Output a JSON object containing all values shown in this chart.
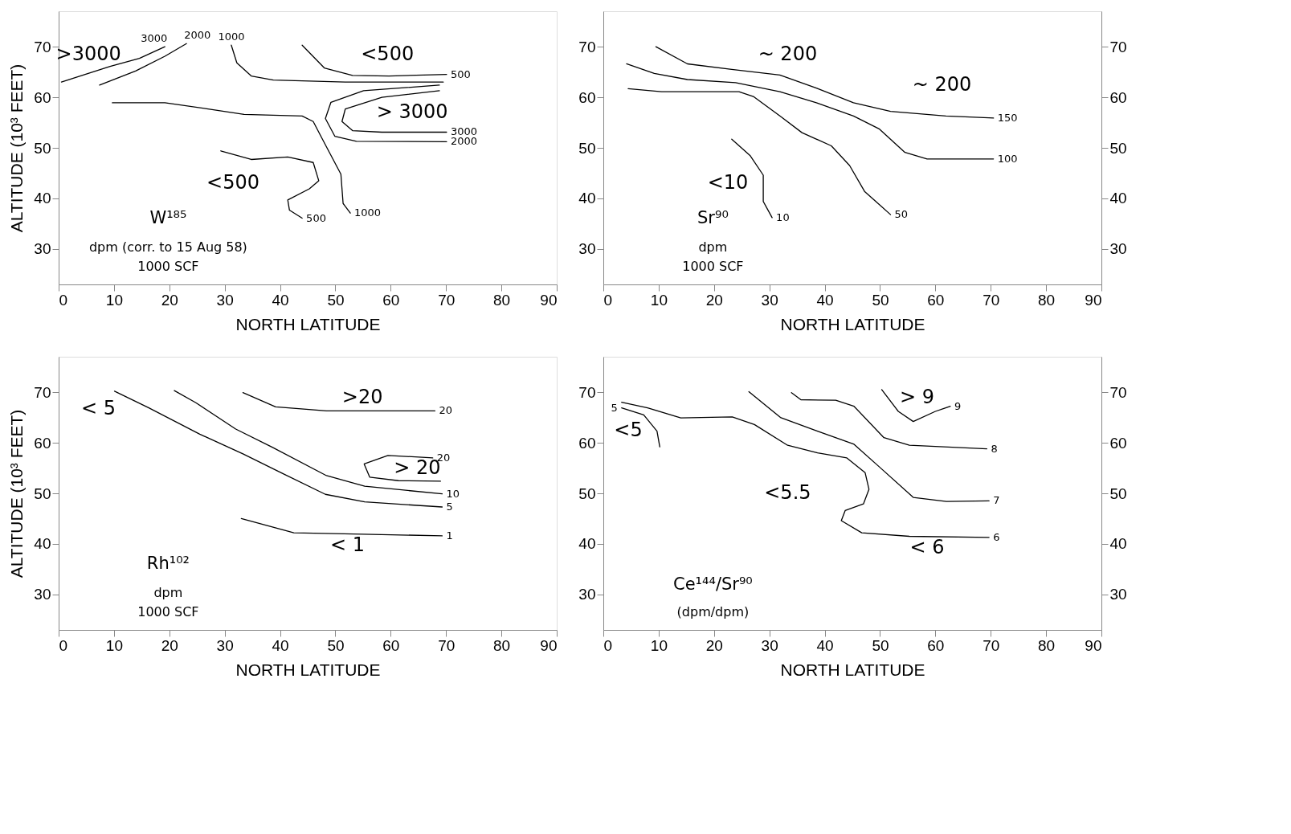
{
  "chart_data": [
    {
      "type": "line",
      "title": "W¹⁸⁵",
      "xlabel": "NORTH LATITUDE",
      "ylabel": "ALTITUDE (10³ FEET)",
      "xlim": [
        0,
        90
      ],
      "ylim": [
        23,
        77
      ],
      "xticks": [
        0,
        10,
        20,
        30,
        40,
        50,
        60,
        70,
        80,
        90
      ],
      "yticks": [
        30,
        40,
        50,
        60,
        70
      ],
      "series": [
        {
          "name": "3000",
          "color": "#000000",
          "x": [
            0.5,
            9.3,
            14.6,
            19.2
          ],
          "values": [
            63,
            66.1,
            67.7,
            70
          ]
        },
        {
          "name": "2000",
          "color": "#000000",
          "x": [
            7.4,
            13.9,
            19.2,
            23.1
          ],
          "values": [
            62.4,
            65.2,
            68.1,
            70.6
          ]
        },
        {
          "name": "1000",
          "color": "#000000",
          "x": [
            69.5,
            51.8,
            38.8,
            34.8,
            32.2,
            31.2
          ],
          "values": [
            63,
            63,
            63.4,
            64.2,
            66.8,
            70.3
          ]
        },
        {
          "name": "500",
          "color": "#000000",
          "x": [
            44,
            48,
            53.1,
            59.7,
            70.1
          ],
          "values": [
            70.3,
            65.8,
            64.3,
            64.2,
            64.5
          ]
        },
        {
          "name": "2000",
          "color": "#000000",
          "x": [
            68.8,
            55.1,
            49.2,
            48.2,
            49.9,
            53.8,
            70.1
          ],
          "values": [
            62.4,
            61.3,
            59,
            55.8,
            52.3,
            51.3,
            51.2
          ]
        },
        {
          "name": "3000",
          "color": "#000000",
          "x": [
            68.8,
            58.4,
            51.8,
            51.2,
            53.1,
            58.4,
            70.1
          ],
          "values": [
            61.3,
            60,
            57.7,
            55.2,
            53.4,
            53.1,
            53.1
          ]
        },
        {
          "name": "1000",
          "color": "#000000",
          "x": [
            9.7,
            19.2,
            27,
            33.5,
            44,
            46,
            48.2,
            51,
            51.4,
            52.7
          ],
          "values": [
            58.9,
            58.9,
            57.7,
            56.6,
            56.3,
            55.2,
            50.6,
            44.8,
            39,
            37.1
          ]
        },
        {
          "name": "500",
          "color": "#000000",
          "x": [
            29.3,
            34.8,
            41.4,
            46,
            47,
            45.3,
            41.4,
            41.7,
            44
          ],
          "values": [
            49.4,
            47.7,
            48.2,
            47.1,
            43.5,
            41.9,
            39.7,
            37.7,
            36.1
          ]
        }
      ],
      "annotations": [
        "dpm (corr. to 15 Aug 58)",
        "1000 SCF",
        ">3000",
        "<500",
        "> 3000",
        "<500"
      ]
    },
    {
      "type": "line",
      "title": "Sr⁹⁰",
      "xlabel": "NORTH LATITUDE",
      "xlim": [
        0,
        90
      ],
      "ylim": [
        23,
        77
      ],
      "xticks": [
        0,
        10,
        20,
        30,
        40,
        50,
        60,
        70,
        80,
        90
      ],
      "yticks": [
        30,
        40,
        50,
        60,
        70
      ],
      "y2lim": [
        23,
        77
      ],
      "y2ticks": [
        30,
        40,
        50,
        60,
        70
      ],
      "series": [
        {
          "name": "150",
          "color": "#000000",
          "x": [
            9.5,
            15.2,
            23.2,
            31.9,
            38.5,
            45.2,
            51.9,
            61.9,
            70.5
          ],
          "values": [
            70,
            66.6,
            65.5,
            64.4,
            61.8,
            58.9,
            57.2,
            56.3,
            55.9
          ]
        },
        {
          "name": "100",
          "color": "#000000",
          "x": [
            4.2,
            9.2,
            15.2,
            23.9,
            31.9,
            38.5,
            45.2,
            49.9,
            54.5,
            58.5,
            70.5
          ],
          "values": [
            66.6,
            64.7,
            63.5,
            62.9,
            61.1,
            58.9,
            56.3,
            53.7,
            49.1,
            47.8,
            47.8
          ]
        },
        {
          "name": "50",
          "color": "#000000",
          "x": [
            4.5,
            10.5,
            24.5,
            27.2,
            31.9,
            35.9,
            41.2,
            44.5,
            47.2,
            51.9
          ],
          "values": [
            61.7,
            61.1,
            61.1,
            60.1,
            56.3,
            53,
            50.4,
            46.5,
            41.4,
            36.8
          ]
        },
        {
          "name": "10",
          "color": "#000000",
          "x": [
            23.2,
            26.5,
            28.9,
            28.9,
            30.5
          ],
          "values": [
            51.7,
            48.5,
            44.6,
            39.4,
            36.2
          ]
        }
      ],
      "annotations": [
        "dpm",
        "1000 SCF",
        "~ 200",
        "~ 200",
        "<10"
      ]
    },
    {
      "type": "line",
      "title": "Rh¹⁰²",
      "xlabel": "NORTH LATITUDE",
      "ylabel": "ALTITUDE (10³ FEET)",
      "xlim": [
        0,
        90
      ],
      "ylim": [
        23,
        77
      ],
      "xticks": [
        0,
        10,
        20,
        30,
        40,
        50,
        60,
        70,
        80,
        90
      ],
      "yticks": [
        30,
        40,
        50,
        60,
        70
      ],
      "series": [
        {
          "name": "5",
          "color": "#000000",
          "x": [
            10.1,
            16.3,
            25.5,
            33.3,
            40.5,
            48.2,
            55.3,
            69.3
          ],
          "values": [
            70.2,
            66.9,
            61.7,
            57.8,
            53.9,
            49.8,
            48.3,
            47.3
          ]
        },
        {
          "name": "10",
          "color": "#000000",
          "x": [
            20.9,
            24.8,
            32,
            38.6,
            48.4,
            55.3,
            69.3
          ],
          "values": [
            70.3,
            67.9,
            62.7,
            59.1,
            53.5,
            51.4,
            49.9
          ]
        },
        {
          "name": "20",
          "color": "#000000",
          "x": [
            33.3,
            39.2,
            48.4,
            68
          ],
          "values": [
            69.9,
            67.1,
            66.3,
            66.3
          ]
        },
        {
          "name": "20",
          "color": "#000000",
          "x": [
            69,
            61.4,
            56.2,
            55.2,
            59.5,
            67.6
          ],
          "values": [
            52.4,
            52.5,
            53.2,
            55.8,
            57.5,
            57
          ]
        },
        {
          "name": "1",
          "color": "#000000",
          "x": [
            33,
            42.5,
            51.6,
            69.3
          ],
          "values": [
            45,
            42.2,
            42,
            41.6
          ]
        }
      ],
      "annotations": [
        "dpm",
        "1000 SCF",
        "< 5",
        ">20",
        "> 20",
        "< 1"
      ]
    },
    {
      "type": "line",
      "title": "Ce¹⁴⁴/Sr⁹⁰",
      "xlabel": "NORTH LATITUDE",
      "xlim": [
        0,
        90
      ],
      "ylim": [
        23,
        77
      ],
      "xticks": [
        0,
        10,
        20,
        30,
        40,
        50,
        60,
        70,
        80,
        90
      ],
      "yticks": [
        30,
        40,
        50,
        60,
        70
      ],
      "y2lim": [
        23,
        77
      ],
      "y2ticks": [
        30,
        40,
        50,
        60,
        70
      ],
      "series": [
        {
          "name": "6",
          "color": "#000000",
          "x": [
            3.3,
            8,
            14,
            23.3,
            27.3,
            33.3,
            38.7,
            44,
            47.3,
            48,
            47,
            43.7,
            43,
            46.7,
            55.3,
            69.7
          ],
          "values": [
            68,
            66.9,
            64.9,
            65.1,
            63.6,
            59.5,
            58,
            57,
            54.1,
            50.8,
            47.9,
            46.6,
            44.6,
            42.2,
            41.5,
            41.3
          ]
        },
        {
          "name": "5",
          "color": "#000000",
          "x": [
            10.2,
            9.7,
            7.3,
            3.3
          ],
          "values": [
            59.2,
            62.3,
            65.5,
            66.9
          ]
        },
        {
          "name": "7",
          "color": "#000000",
          "x": [
            26.3,
            32,
            38.7,
            45.3,
            50,
            56,
            62,
            69.7
          ],
          "values": [
            70.1,
            65,
            62.3,
            59.7,
            55.1,
            49.2,
            48.4,
            48.5
          ]
        },
        {
          "name": "8",
          "color": "#000000",
          "x": [
            34,
            35.7,
            42,
            45.3,
            50.7,
            55.3,
            69.3
          ],
          "values": [
            69.9,
            68.5,
            68.4,
            67.2,
            61,
            59.5,
            58.8
          ]
        },
        {
          "name": "9",
          "color": "#000000",
          "x": [
            50.3,
            53.3,
            56,
            60,
            62.7
          ],
          "values": [
            70.5,
            66.2,
            64.2,
            66.2,
            67.2
          ]
        }
      ],
      "annotations": [
        "(dpm/dpm)",
        "<5",
        "> 9",
        "<5.5",
        "< 6"
      ]
    }
  ]
}
